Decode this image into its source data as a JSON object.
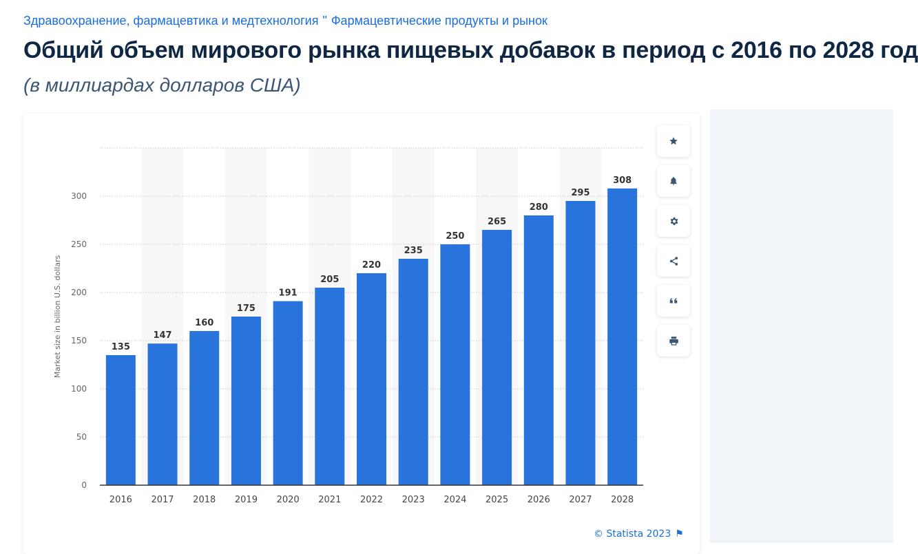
{
  "breadcrumb": {
    "items": [
      "Здравоохранение, фармацевтика и медтехнология",
      "Фармацевтические продукты и рынок"
    ],
    "separator": "\""
  },
  "header": {
    "title": "Общий объем мирового рынка пищевых добавок в период с 2016 по 2028 год",
    "subtitle": "(в миллиардах долларов США)"
  },
  "toolbar": {
    "buttons": [
      {
        "name": "favorite",
        "icon": "star-icon"
      },
      {
        "name": "notification",
        "icon": "bell-icon"
      },
      {
        "name": "settings",
        "icon": "gear-icon"
      },
      {
        "name": "share",
        "icon": "share-icon"
      },
      {
        "name": "cite",
        "icon": "quote-icon"
      },
      {
        "name": "print",
        "icon": "printer-icon"
      }
    ],
    "icon_color": "#3b5573"
  },
  "footer": {
    "credit": "© Statista 2023",
    "flag_icon": "flag-icon"
  },
  "colors": {
    "bar": "#2874dc",
    "link": "#1a6ed8",
    "title": "#0f2742"
  },
  "chart_data": {
    "type": "bar",
    "categories": [
      "2016",
      "2017",
      "2018",
      "2019",
      "2020",
      "2021",
      "2022",
      "2023",
      "2024",
      "2025",
      "2026",
      "2027",
      "2028"
    ],
    "values": [
      135,
      147,
      160,
      175,
      191,
      205,
      220,
      235,
      250,
      265,
      280,
      295,
      308
    ],
    "ylabel": "Market size in billion U.S. dollars",
    "xlabel": "",
    "ylim": [
      0,
      350
    ],
    "yticks": [
      0,
      50,
      100,
      150,
      200,
      250,
      300
    ],
    "grid": true,
    "data_labels": true
  }
}
